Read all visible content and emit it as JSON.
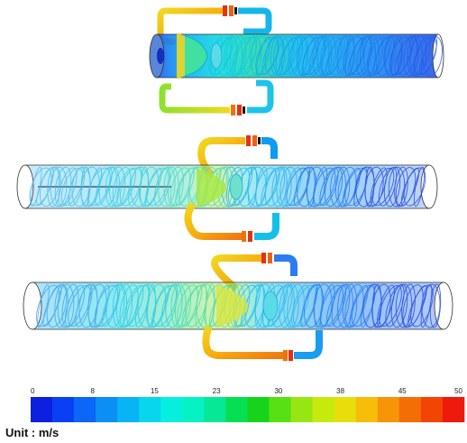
{
  "figure": {
    "panels": [
      "top",
      "middle",
      "bottom"
    ],
    "colorbar": {
      "ticks": [
        "0",
        "8",
        "15",
        "23",
        "30",
        "38",
        "45",
        "50"
      ],
      "colors": [
        "#0d1fe0",
        "#0a40f5",
        "#0a67f7",
        "#0b8ff5",
        "#09b4f4",
        "#07d6ec",
        "#06eee0",
        "#06f2c4",
        "#06e896",
        "#07df52",
        "#17d41a",
        "#58e014",
        "#97e611",
        "#c6ea0e",
        "#e8de0b",
        "#f6bd09",
        "#f79407",
        "#f56e05",
        "#f34403",
        "#ee1a0b"
      ],
      "unit_label": "Unit : m/s"
    }
  }
}
